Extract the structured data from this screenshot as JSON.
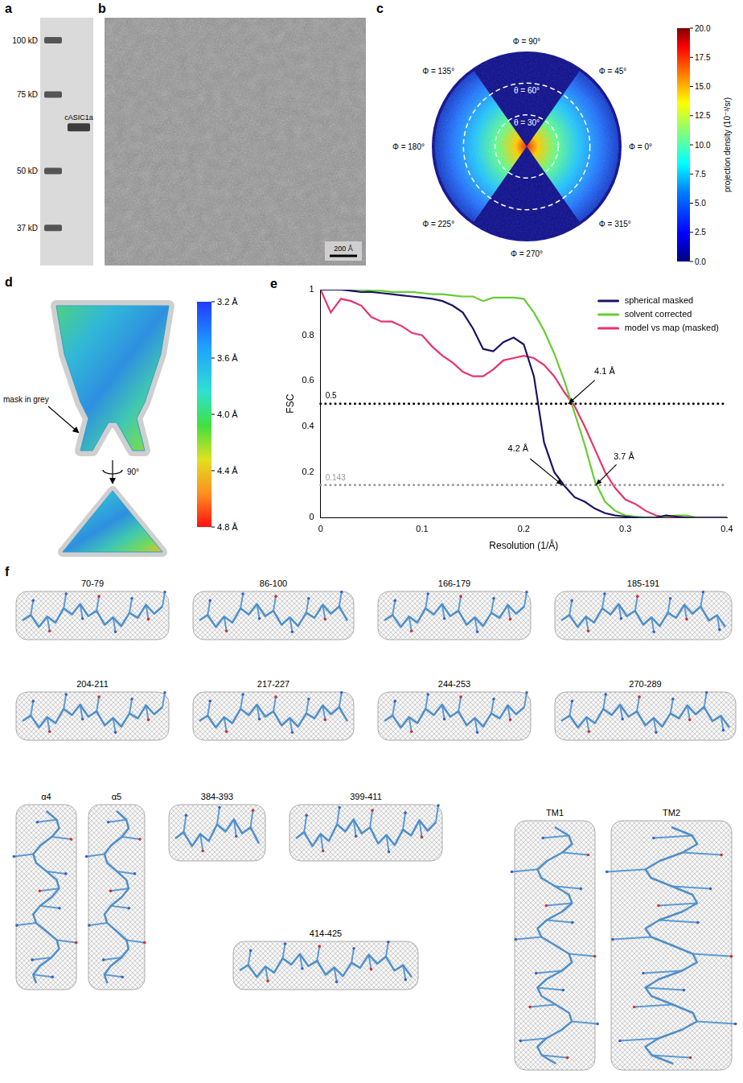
{
  "panel_a": {
    "letter": "a",
    "markers": [
      {
        "value": 100,
        "label": "100 kD"
      },
      {
        "value": 75,
        "label": "75 kD"
      },
      {
        "value": 50,
        "label": "50 kD"
      },
      {
        "value": 37,
        "label": "37 kD"
      }
    ],
    "band": {
      "value": 63,
      "label": "cASIC1a"
    }
  },
  "panel_b": {
    "letter": "b",
    "scale_bar": "200 Å"
  },
  "panel_c": {
    "letter": "c",
    "phi_labels": [
      {
        "value": 90,
        "label": "Φ = 90°"
      },
      {
        "value": 45,
        "label": "Φ = 45°"
      },
      {
        "value": 0,
        "label": "Φ = 0°"
      },
      {
        "value": 315,
        "label": "Φ = 315°"
      },
      {
        "value": 270,
        "label": "Φ = 270°"
      },
      {
        "value": 225,
        "label": "Φ = 225°"
      },
      {
        "value": 180,
        "label": "Φ = 180°"
      },
      {
        "value": 135,
        "label": "Φ = 135°"
      }
    ],
    "theta_labels": [
      {
        "value": 30,
        "label": "θ = 30°"
      },
      {
        "value": 60,
        "label": "θ = 60°"
      }
    ],
    "colorbar": {
      "title": "projection density (10⁻³/sr)",
      "lim": [
        0,
        20
      ],
      "ticks": [
        {
          "value": 0,
          "label": "0.0"
        },
        {
          "value": 2.5,
          "label": "2.5"
        },
        {
          "value": 5,
          "label": "5.0"
        },
        {
          "value": 7.5,
          "label": "7.5"
        },
        {
          "value": 10,
          "label": "10.0"
        },
        {
          "value": 12.5,
          "label": "12.5"
        },
        {
          "value": 15,
          "label": "15.0"
        },
        {
          "value": 17.5,
          "label": "17.5"
        },
        {
          "value": 20,
          "label": "20.0"
        }
      ]
    }
  },
  "panel_d": {
    "letter": "d",
    "mask_label": "mask in grey",
    "rotation_label": "90°",
    "colorbar": {
      "lim": [
        3.2,
        4.8
      ],
      "ticks": [
        {
          "value": 3.2,
          "label": "3.2 Å"
        },
        {
          "value": 3.6,
          "label": "3.6 Å"
        },
        {
          "value": 4.0,
          "label": "4.0 Å"
        },
        {
          "value": 4.4,
          "label": "4.4 Å"
        },
        {
          "value": 4.8,
          "label": "4.8 Å"
        }
      ]
    }
  },
  "chart_data": {
    "panel_letter": "e",
    "type": "line",
    "x": [
      0,
      0.01,
      0.02,
      0.03,
      0.04,
      0.05,
      0.06,
      0.07,
      0.08,
      0.09,
      0.1,
      0.11,
      0.12,
      0.13,
      0.14,
      0.15,
      0.16,
      0.17,
      0.18,
      0.19,
      0.2,
      0.21,
      0.22,
      0.23,
      0.24,
      0.25,
      0.26,
      0.27,
      0.28,
      0.29,
      0.3,
      0.31,
      0.32,
      0.33,
      0.34,
      0.35,
      0.36,
      0.37,
      0.38,
      0.39,
      0.4
    ],
    "series": [
      {
        "name": "spherical masked",
        "color": "#1b1464",
        "values": [
          1,
          1,
          1,
          0.995,
          0.99,
          0.99,
          0.985,
          0.98,
          0.975,
          0.97,
          0.965,
          0.96,
          0.95,
          0.93,
          0.9,
          0.83,
          0.74,
          0.73,
          0.77,
          0.79,
          0.76,
          0.62,
          0.33,
          0.2,
          0.14,
          0.09,
          0.07,
          0.04,
          0.02,
          0.01,
          0.005,
          0,
          0,
          0,
          0.01,
          0.005,
          0,
          0,
          0,
          0,
          0
        ]
      },
      {
        "name": "solvent corrected",
        "color": "#66cc33",
        "values": [
          1,
          1,
          1,
          1,
          1,
          0.995,
          0.995,
          0.99,
          0.99,
          0.99,
          0.985,
          0.98,
          0.98,
          0.975,
          0.97,
          0.97,
          0.95,
          0.965,
          0.965,
          0.965,
          0.96,
          0.9,
          0.82,
          0.72,
          0.6,
          0.46,
          0.32,
          0.16,
          0.07,
          0.03,
          0.01,
          0.005,
          0,
          0,
          0.005,
          0.01,
          0.01,
          0,
          0,
          0,
          0
        ]
      },
      {
        "name": "model vs map (masked)",
        "color": "#e8336d",
        "values": [
          1,
          0.9,
          0.96,
          0.95,
          0.93,
          0.88,
          0.86,
          0.86,
          0.84,
          0.81,
          0.8,
          0.75,
          0.71,
          0.68,
          0.64,
          0.62,
          0.62,
          0.65,
          0.69,
          0.7,
          0.71,
          0.7,
          0.67,
          0.62,
          0.55,
          0.49,
          0.4,
          0.3,
          0.2,
          0.13,
          0.08,
          0.06,
          0.03,
          0.01,
          0,
          0,
          0,
          0,
          0,
          0,
          0
        ]
      }
    ],
    "xlim": [
      0,
      0.4
    ],
    "ylim": [
      0,
      1
    ],
    "xticks": [
      0,
      0.1,
      0.2,
      0.3,
      0.4
    ],
    "yticks": [
      0,
      0.2,
      0.4,
      0.6,
      0.8,
      1
    ],
    "x_label": "Resolution (1/Å)",
    "y_label": "FSC",
    "legend": "upper right",
    "grid": false,
    "reference_lines": [
      {
        "value": 0.5,
        "label": "0.5",
        "color": "#000000",
        "line_style": "dotted"
      },
      {
        "value": 0.143,
        "label": "0.143",
        "color": "#999999",
        "line_style": "dotted"
      }
    ],
    "annotations": [
      {
        "text": "4.1 Å",
        "x": 0.244,
        "y": 0.5
      },
      {
        "text": "4.2 Å",
        "x": 0.238,
        "y": 0.143
      },
      {
        "text": "3.7 Å",
        "x": 0.271,
        "y": 0.143
      }
    ]
  },
  "panel_f": {
    "letter": "f",
    "labels": [
      "70-79",
      "86-100",
      "166-179",
      "185-191",
      "204-211",
      "217-227",
      "244-253",
      "270-289",
      "α4",
      "α5",
      "384-393",
      "399-411",
      "414-425",
      "TM1",
      "TM2"
    ]
  }
}
